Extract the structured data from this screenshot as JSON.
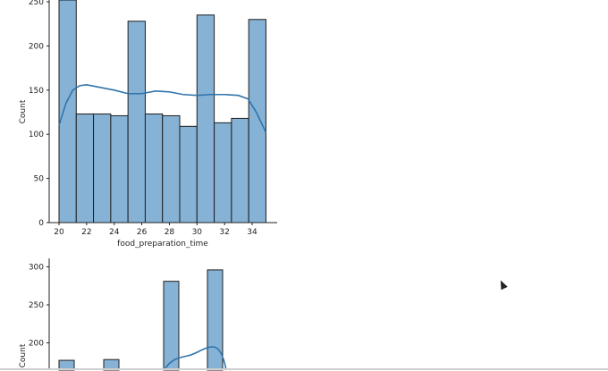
{
  "chart_data": [
    {
      "type": "bar",
      "subtype": "histogram-with-kde",
      "xlabel": "food_preparation_time",
      "ylabel": "Count",
      "xlim": [
        20,
        35
      ],
      "ylim_visible": [
        0,
        252
      ],
      "xticks": [
        "20",
        "22",
        "24",
        "26",
        "28",
        "30",
        "32",
        "34"
      ],
      "yticks": [
        "0",
        "50",
        "100",
        "150",
        "200",
        "250"
      ],
      "bin_edges": [
        20,
        21.25,
        22.5,
        23.75,
        25,
        26.25,
        27.5,
        28.75,
        30,
        31.25,
        32.5,
        33.75,
        35
      ],
      "values": [
        260,
        123,
        123,
        121,
        228,
        123,
        121,
        109,
        235,
        113,
        118,
        230
      ],
      "kde": {
        "x": [
          20,
          20.5,
          21,
          21.5,
          22,
          23,
          24,
          25,
          26,
          27,
          28,
          29,
          30,
          31,
          32,
          33,
          33.7,
          34.3,
          35
        ],
        "y": [
          110,
          135,
          150,
          155,
          156,
          153,
          150,
          146,
          146,
          149,
          148,
          145,
          144,
          145,
          145,
          144,
          140,
          125,
          102
        ]
      },
      "grid": false
    },
    {
      "type": "bar",
      "subtype": "histogram-with-kde",
      "ylabel": "Count",
      "yticks": [
        "200",
        "250",
        "300"
      ],
      "bars": [
        {
          "value": 177
        },
        {
          "value": 178
        },
        {
          "value": 281
        },
        {
          "value": 296
        }
      ],
      "kde_peak": 184,
      "grid": false
    }
  ],
  "colors": {
    "bar": "#86b2d5",
    "kde": "#2f74ad"
  }
}
